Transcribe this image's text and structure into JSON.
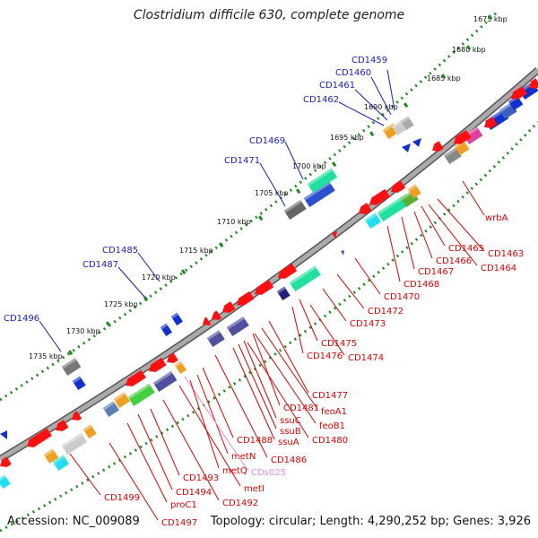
{
  "title": "Clostridium difficile 630, complete genome",
  "footer": {
    "accession": "Accession: NC_009089",
    "info": "Topology: circular; Length: 4,290,252 bp; Genes: 3,926"
  },
  "colors": {
    "backbone": "#888888",
    "ruler_dots": "#1e8a1e",
    "forward_label": "#1a1acc",
    "reverse_label": "#e00000",
    "ncrna_label": "#e58ad8"
  },
  "ticks": [
    "1675 kbp",
    "1680 kbp",
    "1685 kbp",
    "1690 kbp",
    "1695 kbp",
    "1700 kbp",
    "1705 kbp",
    "1710 kbp",
    "1715 kbp",
    "1720 kbp",
    "1725 kbp",
    "1730 kbp",
    "1735 kbp"
  ],
  "forward_labels": [
    "CD1459",
    "CD1460",
    "CD1461",
    "CD1462",
    "CD1469",
    "CD1471",
    "CD1485",
    "CD1487",
    "CD1496"
  ],
  "reverse_labels": [
    "wrbA",
    "CD1463",
    "CD1464",
    "CD1465",
    "CD1466",
    "CD1467",
    "CD1468",
    "CD1470",
    "CD1472",
    "CD1473",
    "CD1475",
    "CD1474",
    "CD1476",
    "CD1477",
    "feoA1",
    "CD1481",
    "feoB1",
    "ssuC",
    "ssuB",
    "CD1480",
    "ssuA",
    "CD1488",
    "CD1486",
    "metN",
    "CDs025",
    "metQ",
    "CD1493",
    "metI",
    "CD1494",
    "CD1492",
    "proC1",
    "CD1499",
    "CD1497"
  ]
}
